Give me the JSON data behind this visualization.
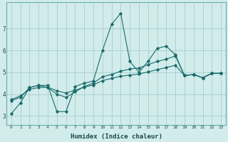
{
  "xlabel": "Humidex (Indice chaleur)",
  "ylabel": "",
  "background_color": "#d1eceb",
  "grid_color": "#a0c8c8",
  "line_color": "#1a6b6b",
  "xlim": [
    -0.5,
    23.5
  ],
  "ylim": [
    2.6,
    8.2
  ],
  "yticks": [
    3,
    4,
    5,
    6,
    7
  ],
  "xticks": [
    0,
    1,
    2,
    3,
    4,
    5,
    6,
    7,
    8,
    9,
    10,
    11,
    12,
    13,
    14,
    15,
    16,
    17,
    18,
    19,
    20,
    21,
    22,
    23
  ],
  "series1_x": [
    0,
    1,
    2,
    3,
    4,
    5,
    6,
    7,
    8,
    9,
    10,
    11,
    12,
    13,
    14,
    15,
    16,
    17,
    18,
    19,
    20,
    21,
    22,
    23
  ],
  "series1_y": [
    3.1,
    3.6,
    4.3,
    4.4,
    4.4,
    3.2,
    3.2,
    4.35,
    4.5,
    4.6,
    6.0,
    7.2,
    7.7,
    5.5,
    5.0,
    5.5,
    6.1,
    6.2,
    5.8,
    4.85,
    4.9,
    4.75,
    4.95,
    4.95
  ],
  "series2_x": [
    0,
    1,
    2,
    3,
    4,
    5,
    6,
    7,
    8,
    9,
    10,
    11,
    12,
    13,
    14,
    15,
    16,
    17,
    18,
    19,
    20,
    21,
    22,
    23
  ],
  "series2_y": [
    3.7,
    3.85,
    4.3,
    4.4,
    4.3,
    4.0,
    3.85,
    4.1,
    4.35,
    4.5,
    4.8,
    4.9,
    5.05,
    5.15,
    5.2,
    5.35,
    5.5,
    5.6,
    5.75,
    4.85,
    4.9,
    4.75,
    4.95,
    4.95
  ],
  "series3_x": [
    0,
    1,
    2,
    3,
    4,
    5,
    6,
    7,
    8,
    9,
    10,
    11,
    12,
    13,
    14,
    15,
    16,
    17,
    18,
    19,
    20,
    21,
    22,
    23
  ],
  "series3_y": [
    3.75,
    3.92,
    4.22,
    4.3,
    4.32,
    4.15,
    4.05,
    4.18,
    4.32,
    4.42,
    4.62,
    4.72,
    4.82,
    4.87,
    4.92,
    5.02,
    5.12,
    5.22,
    5.32,
    4.85,
    4.9,
    4.75,
    4.95,
    4.95
  ]
}
